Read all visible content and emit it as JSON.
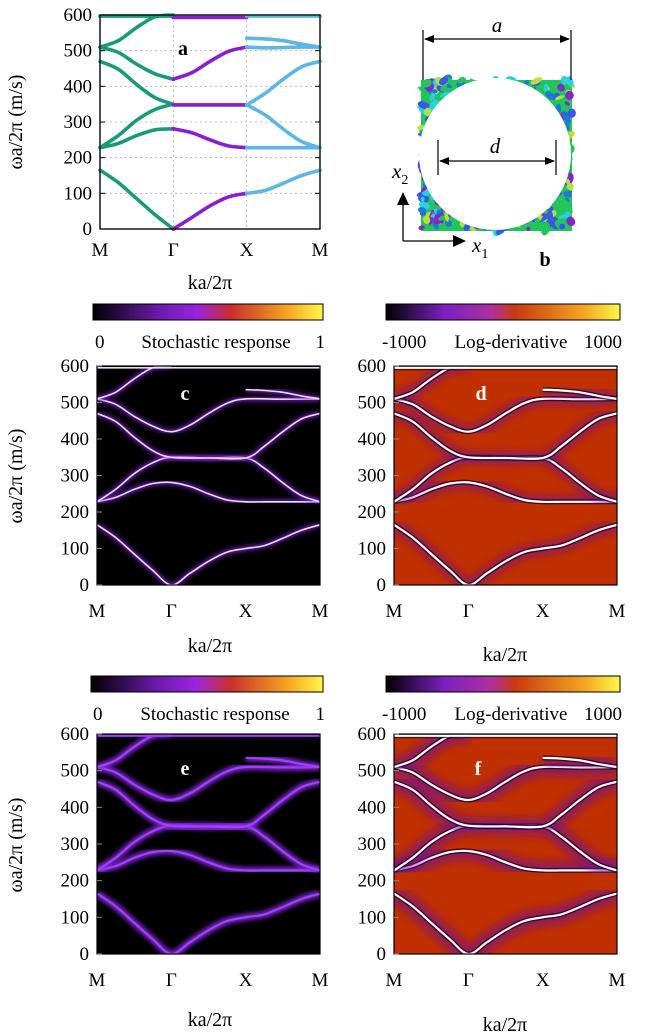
{
  "chart_data": [
    {
      "id": "a",
      "type": "line",
      "panel_label": "a",
      "ylabel": "ωa/2π (m/s)",
      "xlabel": "ka/2π",
      "xticks": [
        "M",
        "Γ",
        "X",
        "M"
      ],
      "yticks": [
        "0",
        "100",
        "200",
        "300",
        "400",
        "500",
        "600"
      ],
      "ylim": [
        0,
        600
      ],
      "grid": true,
      "series": [
        {
          "color": "#1a9a78",
          "x": [
            0,
            0.25,
            0.5,
            0.75,
            1
          ],
          "values": [
            165,
            130,
            85,
            40,
            0
          ]
        },
        {
          "color": "#1a9a78",
          "x": [
            0,
            0.25,
            0.5,
            0.75,
            1
          ],
          "values": [
            228,
            240,
            262,
            278,
            281
          ]
        },
        {
          "color": "#1a9a78",
          "x": [
            0,
            0.25,
            0.5,
            0.75,
            1
          ],
          "values": [
            228,
            262,
            305,
            335,
            350
          ]
        },
        {
          "color": "#1a9a78",
          "x": [
            0,
            0.25,
            0.5,
            0.75,
            1
          ],
          "values": [
            470,
            448,
            405,
            368,
            350
          ]
        },
        {
          "color": "#1a9a78",
          "x": [
            0,
            0.25,
            0.5,
            0.75,
            1
          ],
          "values": [
            510,
            528,
            565,
            595,
            600
          ]
        },
        {
          "color": "#1a9a78",
          "x": [
            0,
            0.25,
            0.5,
            0.75,
            1
          ],
          "values": [
            510,
            495,
            462,
            435,
            420
          ]
        },
        {
          "color": "#1a9a78",
          "x": [
            0,
            1
          ],
          "values": [
            597,
            597
          ]
        },
        {
          "color": "#8a1fd0",
          "x": [
            1,
            1.25,
            1.5,
            1.75,
            2
          ],
          "values": [
            0,
            32,
            65,
            90,
            100
          ]
        },
        {
          "color": "#8a1fd0",
          "x": [
            1,
            1.25,
            1.5,
            1.75,
            2
          ],
          "values": [
            281,
            270,
            250,
            233,
            228
          ]
        },
        {
          "color": "#8a1fd0",
          "x": [
            1,
            2
          ],
          "values": [
            348,
            348
          ]
        },
        {
          "color": "#8a1fd0",
          "x": [
            1,
            1.25,
            1.5,
            1.75,
            2
          ],
          "values": [
            420,
            438,
            470,
            498,
            510
          ]
        },
        {
          "color": "#8a1fd0",
          "x": [
            1,
            2
          ],
          "values": [
            593,
            593
          ]
        },
        {
          "color": "#5eb6e4",
          "x": [
            2,
            2.25,
            2.5,
            2.75,
            3
          ],
          "values": [
            100,
            108,
            128,
            150,
            165
          ]
        },
        {
          "color": "#5eb6e4",
          "x": [
            2,
            3
          ],
          "values": [
            228,
            228
          ]
        },
        {
          "color": "#5eb6e4",
          "x": [
            2,
            2.25,
            2.5,
            2.75,
            3
          ],
          "values": [
            348,
            320,
            280,
            245,
            228
          ]
        },
        {
          "color": "#5eb6e4",
          "x": [
            2,
            2.25,
            2.5,
            2.75,
            3
          ],
          "values": [
            348,
            380,
            420,
            455,
            470
          ]
        },
        {
          "color": "#5eb6e4",
          "x": [
            2,
            2.25,
            2.5,
            2.75,
            3
          ],
          "values": [
            510,
            508,
            509,
            510,
            510
          ]
        },
        {
          "color": "#5eb6e4",
          "x": [
            2,
            2.25,
            2.5,
            2.75,
            3
          ],
          "values": [
            535,
            533,
            528,
            518,
            510
          ]
        },
        {
          "color": "#5eb6e4",
          "x": [
            2,
            3
          ],
          "values": [
            597,
            597
          ]
        }
      ]
    },
    {
      "id": "c",
      "type": "heatmap",
      "panel_label": "c",
      "colorbar_label": "Stochastic response",
      "colorbar_ticks": [
        "0",
        "1"
      ],
      "ylabel": "ωa/2π (m/s)",
      "xlabel": "ka/2π",
      "xticks": [
        "M",
        "Γ",
        "X",
        "M"
      ],
      "yticks": [
        "0",
        "100",
        "200",
        "300",
        "400",
        "500",
        "600"
      ],
      "ylim": [
        0,
        600
      ]
    },
    {
      "id": "d",
      "type": "heatmap",
      "panel_label": "d",
      "colorbar_label": "Log-derivative",
      "colorbar_ticks": [
        "-1000",
        "1000"
      ],
      "xlabel": "ka/2π",
      "xticks": [
        "M",
        "Γ",
        "X",
        "M"
      ],
      "yticks": [
        "0",
        "100",
        "200",
        "300",
        "400",
        "500",
        "600"
      ],
      "ylim": [
        0,
        600
      ]
    },
    {
      "id": "e",
      "type": "heatmap",
      "panel_label": "e",
      "colorbar_label": "Stochastic response",
      "colorbar_ticks": [
        "0",
        "1"
      ],
      "ylabel": "ωa/2π (m/s)",
      "xlabel": "ka/2π",
      "xticks": [
        "M",
        "Γ",
        "X",
        "M"
      ],
      "yticks": [
        "0",
        "100",
        "200",
        "300",
        "400",
        "500",
        "600"
      ],
      "ylim": [
        0,
        600
      ]
    },
    {
      "id": "f",
      "type": "heatmap",
      "panel_label": "f",
      "colorbar_label": "Log-derivative",
      "colorbar_ticks": [
        "-1000",
        "1000"
      ],
      "xlabel": "ka/2π",
      "xticks": [
        "M",
        "Γ",
        "X",
        "M"
      ],
      "yticks": [
        "0",
        "100",
        "200",
        "300",
        "400",
        "500",
        "600"
      ],
      "ylim": [
        0,
        600
      ]
    }
  ],
  "bands": [
    {
      "x": [
        0,
        0.25,
        0.5,
        0.75,
        1,
        1.25,
        1.5,
        1.75,
        2,
        2.25,
        2.5,
        2.75,
        3
      ],
      "values": [
        165,
        130,
        85,
        40,
        0,
        32,
        65,
        90,
        100,
        108,
        128,
        150,
        165
      ]
    },
    {
      "x": [
        0,
        0.25,
        0.5,
        0.75,
        1,
        1.25,
        1.5,
        1.75,
        2,
        2.25,
        2.5,
        2.75,
        3
      ],
      "values": [
        228,
        240,
        262,
        278,
        281,
        270,
        250,
        233,
        228,
        228,
        228,
        228,
        228
      ]
    },
    {
      "x": [
        0,
        0.25,
        0.5,
        0.75,
        1,
        1.5,
        2,
        2.25,
        2.5,
        2.75,
        3
      ],
      "values": [
        228,
        262,
        305,
        335,
        350,
        348,
        348,
        320,
        280,
        245,
        228
      ]
    },
    {
      "x": [
        0,
        0.25,
        0.5,
        0.75,
        1,
        1.5,
        2,
        2.25,
        2.5,
        2.75,
        3
      ],
      "values": [
        470,
        448,
        405,
        368,
        350,
        348,
        348,
        380,
        420,
        455,
        470
      ]
    },
    {
      "x": [
        0,
        0.25,
        0.5,
        0.75,
        1,
        1.25,
        1.5,
        1.75,
        2,
        2.5,
        3
      ],
      "values": [
        510,
        495,
        462,
        435,
        420,
        438,
        470,
        498,
        510,
        509,
        510
      ]
    },
    {
      "x": [
        0,
        0.25,
        0.5,
        0.75,
        1
      ],
      "values": [
        510,
        528,
        565,
        595,
        600
      ]
    },
    {
      "x": [
        2,
        2.25,
        2.5,
        2.75,
        3
      ],
      "values": [
        535,
        533,
        528,
        518,
        510
      ]
    },
    {
      "x": [
        0,
        1,
        2,
        3
      ],
      "values": [
        595,
        595,
        595,
        595
      ]
    }
  ],
  "unit_cell": {
    "dim_a": "a",
    "dim_d": "d",
    "axis_x1": "x",
    "axis_x1_sub": "1",
    "axis_x2": "x",
    "axis_x2_sub": "2",
    "panel_label": "b",
    "matrix_colors": [
      "#22c45c",
      "#2ad0e0",
      "#3a58e8",
      "#8a24c8",
      "#b8e03a",
      "#1f78d8"
    ],
    "inclusion_color": "#ffffff"
  },
  "colors": {
    "stochastic_background": "#000000",
    "stochastic_line_core": "#f0d8ff",
    "stochastic_line_glow": "#8a2be2",
    "logderiv_background": "#c03000",
    "logderiv_line": "#ffffff"
  }
}
